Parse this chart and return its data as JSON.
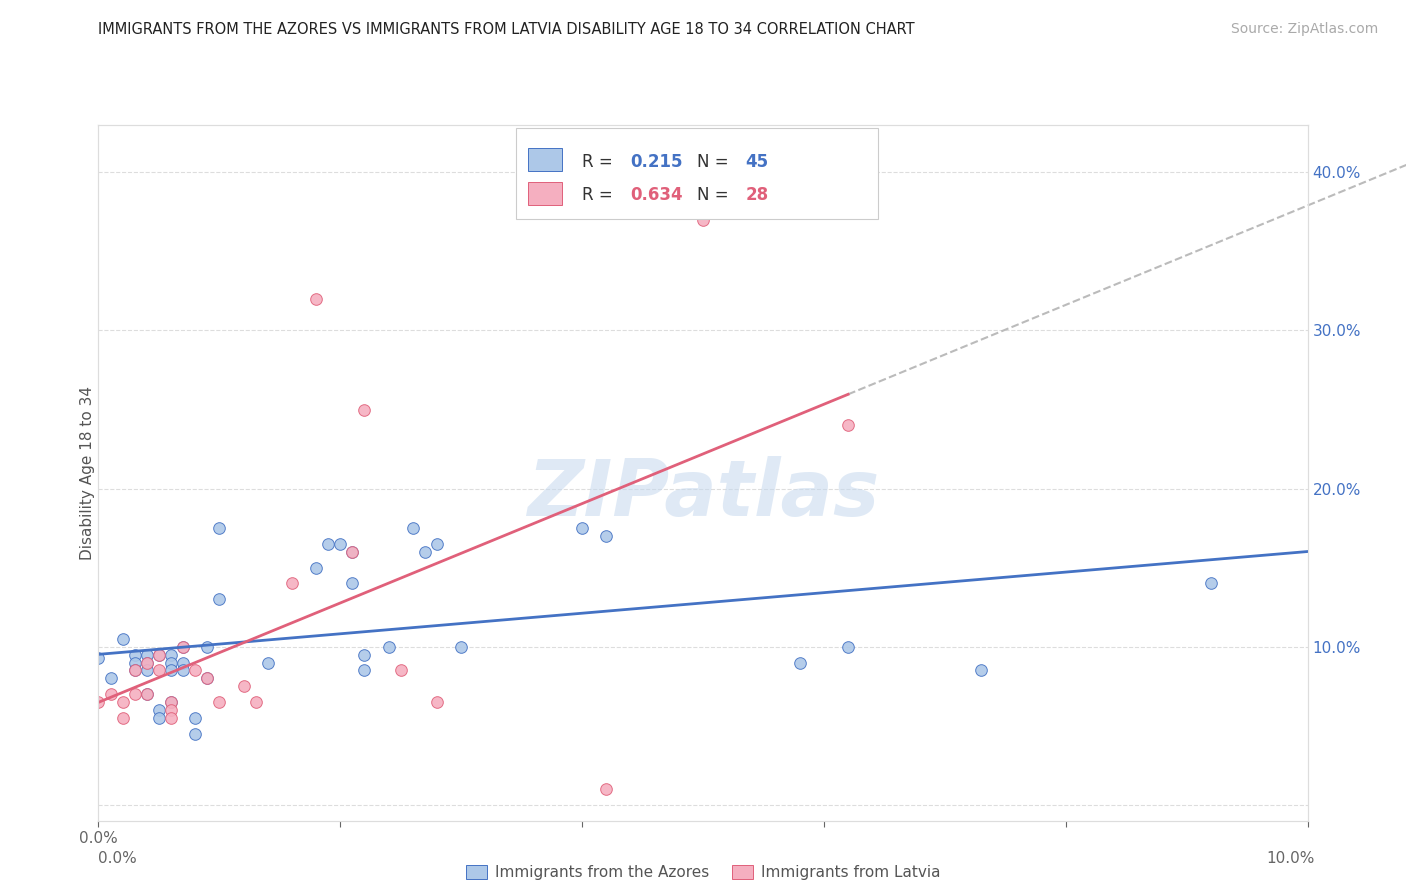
{
  "title": "IMMIGRANTS FROM THE AZORES VS IMMIGRANTS FROM LATVIA DISABILITY AGE 18 TO 34 CORRELATION CHART",
  "source": "Source: ZipAtlas.com",
  "ylabel": "Disability Age 18 to 34",
  "xlim": [
    0.0,
    0.1
  ],
  "ylim": [
    -0.01,
    0.43
  ],
  "y_ticks": [
    0.0,
    0.1,
    0.2,
    0.3,
    0.4
  ],
  "y_tick_labels": [
    "",
    "10.0%",
    "20.0%",
    "30.0%",
    "40.0%"
  ],
  "watermark": "ZIPatlas",
  "azores_color": "#adc8e8",
  "latvia_color": "#f5afc0",
  "trendline_azores_color": "#4472c4",
  "trendline_latvia_color": "#e0607a",
  "trendline_dashed_color": "#bbbbbb",
  "r_azores": "0.215",
  "n_azores": "45",
  "r_latvia": "0.634",
  "n_latvia": "28",
  "azores_x": [
    0.0,
    0.001,
    0.002,
    0.003,
    0.003,
    0.003,
    0.004,
    0.004,
    0.004,
    0.004,
    0.005,
    0.005,
    0.005,
    0.006,
    0.006,
    0.006,
    0.006,
    0.007,
    0.007,
    0.007,
    0.008,
    0.008,
    0.009,
    0.009,
    0.01,
    0.01,
    0.014,
    0.018,
    0.019,
    0.02,
    0.021,
    0.021,
    0.022,
    0.022,
    0.024,
    0.026,
    0.027,
    0.028,
    0.03,
    0.04,
    0.042,
    0.058,
    0.062,
    0.073,
    0.092
  ],
  "azores_y": [
    0.093,
    0.08,
    0.105,
    0.095,
    0.09,
    0.085,
    0.095,
    0.09,
    0.085,
    0.07,
    0.095,
    0.06,
    0.055,
    0.095,
    0.09,
    0.085,
    0.065,
    0.1,
    0.09,
    0.085,
    0.055,
    0.045,
    0.1,
    0.08,
    0.175,
    0.13,
    0.09,
    0.15,
    0.165,
    0.165,
    0.16,
    0.14,
    0.095,
    0.085,
    0.1,
    0.175,
    0.16,
    0.165,
    0.1,
    0.175,
    0.17,
    0.09,
    0.1,
    0.085,
    0.14
  ],
  "latvia_x": [
    0.0,
    0.001,
    0.002,
    0.002,
    0.003,
    0.003,
    0.004,
    0.004,
    0.005,
    0.005,
    0.006,
    0.006,
    0.006,
    0.007,
    0.008,
    0.009,
    0.01,
    0.012,
    0.013,
    0.016,
    0.018,
    0.021,
    0.022,
    0.025,
    0.028,
    0.042,
    0.05,
    0.062
  ],
  "latvia_y": [
    0.065,
    0.07,
    0.065,
    0.055,
    0.085,
    0.07,
    0.09,
    0.07,
    0.095,
    0.085,
    0.065,
    0.06,
    0.055,
    0.1,
    0.085,
    0.08,
    0.065,
    0.075,
    0.065,
    0.14,
    0.32,
    0.16,
    0.25,
    0.085,
    0.065,
    0.01,
    0.37,
    0.24
  ]
}
